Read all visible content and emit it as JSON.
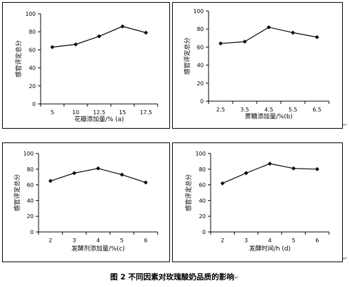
{
  "caption": "图 2 不同因素对玫瑰酸奶品质的影响",
  "paragraph_mark": "↵",
  "chart_data": [
    {
      "type": "line",
      "title": "",
      "xlabel": "花瓣添加量/% (a)",
      "ylabel": "感官评定总分",
      "x": [
        "5",
        "10",
        "12.5",
        "15",
        "17.5"
      ],
      "values": [
        63,
        66,
        75,
        86,
        79
      ],
      "yticks": [
        "0",
        "20",
        "40",
        "60",
        "80",
        "100"
      ],
      "ylim": [
        0,
        100
      ],
      "grid": false,
      "color": "#000000"
    },
    {
      "type": "line",
      "title": "",
      "xlabel": "蔗糖添加量/%(b)",
      "ylabel": "感官评定总分",
      "x": [
        "2.5",
        "3.5",
        "4.5",
        "5.5",
        "6.5"
      ],
      "values": [
        64,
        66,
        82,
        76,
        71
      ],
      "yticks": [
        "0",
        "20",
        "40",
        "60",
        "80",
        "100"
      ],
      "ylim": [
        0,
        100
      ],
      "grid": false,
      "color": "#000000"
    },
    {
      "type": "line",
      "title": "",
      "xlabel": "发酵剂添加量/%(c)",
      "ylabel": "感官评定总分",
      "x": [
        "2",
        "3",
        "4",
        "5",
        "6"
      ],
      "values": [
        65,
        75,
        81,
        73,
        63
      ],
      "yticks": [
        "0",
        "20",
        "40",
        "60",
        "80",
        "100"
      ],
      "ylim": [
        0,
        100
      ],
      "grid": false,
      "color": "#000000"
    },
    {
      "type": "line",
      "title": "",
      "xlabel": "发酵时间/h (d)",
      "ylabel": "感官评定总分",
      "x": [
        "2",
        "3",
        "4",
        "5",
        "6"
      ],
      "values": [
        62,
        75,
        87,
        81,
        80
      ],
      "yticks": [
        "0",
        "20",
        "40",
        "60",
        "80",
        "100"
      ],
      "ylim": [
        0,
        100
      ],
      "grid": false,
      "color": "#000000"
    }
  ]
}
